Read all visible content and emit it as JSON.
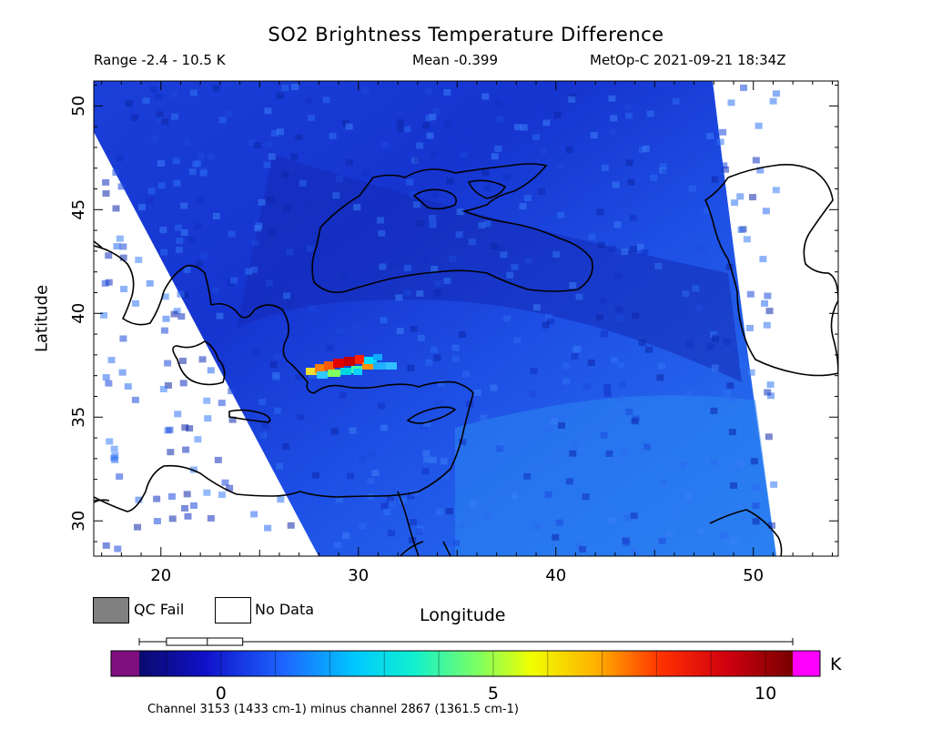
{
  "header": {
    "title": "SO2 Brightness Temperature Difference",
    "range": "Range -2.4 - 10.5 K",
    "mean": "Mean -0.399",
    "satellite_time": "MetOp-C 2021-09-21 18:34Z"
  },
  "axes": {
    "y_label": "Latitude",
    "x_label": "Longitude",
    "lon_ticks": [
      "20",
      "30",
      "40",
      "50"
    ],
    "lat_ticks": [
      "30",
      "35",
      "40",
      "45",
      "50"
    ],
    "lon_range": [
      16.6,
      54.3
    ],
    "lat_range": [
      28.3,
      51.2
    ]
  },
  "legend": {
    "qc_fail_label": "QC Fail",
    "no_data_label": "No Data",
    "qc_fail_color": "#808080",
    "no_data_color": "#ffffff"
  },
  "colorbar": {
    "unit": "K",
    "tick_labels": [
      "0",
      "5",
      "10"
    ],
    "min": -1.5,
    "max": 10.5,
    "underflow_color": "#7f0f7f",
    "overflow_color": "#ff00ff",
    "boxplot": {
      "min": -1.5,
      "q1": -1.0,
      "median": -0.25,
      "q3": 0.4,
      "max": 10.5
    }
  },
  "caption": "Channel 3153 (1433 cm-1) minus channel 2867 (1361.5 cm-1)",
  "plume": {
    "lon": 29.7,
    "lat": 37.4,
    "peak_value": 10.5
  }
}
